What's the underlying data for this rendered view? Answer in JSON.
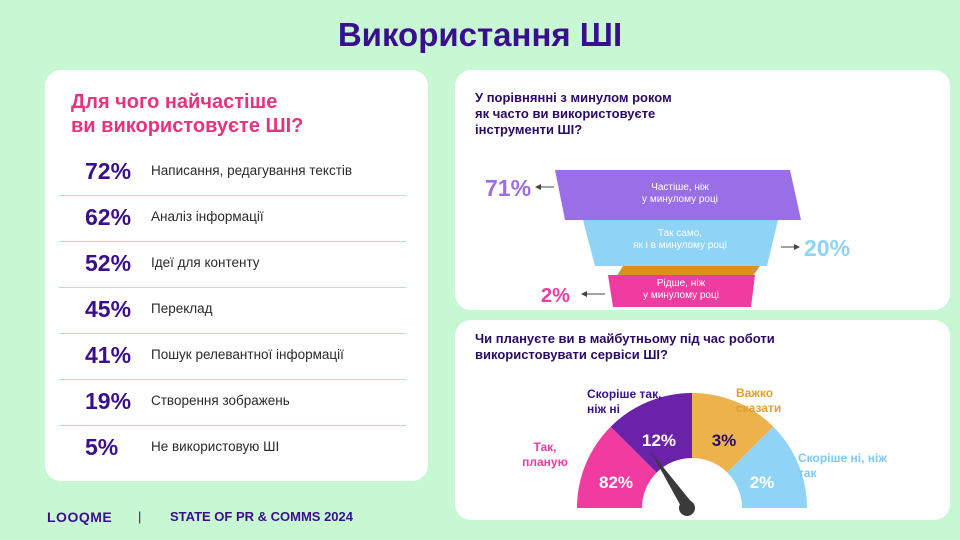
{
  "title": "Використання ШІ",
  "left_panel": {
    "question_line1": "Для чого найчастіше",
    "question_line2": "ви використовуєте ШІ?"
  },
  "funnel": {
    "question_line1": "У порівнянні з минулом роком",
    "question_line2": "як часто ви використовуєте",
    "question_line3": "інструменти ШІ?"
  },
  "gauge": {
    "question_line1": "Чи плануєте ви в майбутньому під час роботи",
    "question_line2": "використовувати сервіси ШІ?"
  },
  "footer": {
    "brand": "LOOQME",
    "divider": "|",
    "report": "STATE OF PR & COMMS 2024"
  },
  "colors": {
    "purple": "#9a6ee6",
    "blue": "#8fd3f7",
    "pink": "#f03ba0",
    "dark_purple": "#6a22a8",
    "yellow": "#ecb24c",
    "green_connector": "#6b8a2e",
    "orange_connector": "#d99220",
    "gauge_pink": "#f03ba0",
    "gauge_blue": "#8fd3f7"
  },
  "chart_data": [
    {
      "type": "table",
      "categories": [
        "Написання, редагування текстів",
        "Аналіз інформації",
        "Ідеї для контенту",
        "Переклад",
        "Пошук релевантної інформації",
        "Створення зображень",
        "Не використовую ШІ"
      ],
      "values": [
        72,
        62,
        52,
        45,
        41,
        19,
        5
      ],
      "labels": [
        "72%",
        "62%",
        "52%",
        "45%",
        "41%",
        "19%",
        "5%"
      ]
    },
    {
      "type": "bar",
      "categories": [
        {
          "line1": "Частіше, ніж",
          "line2": "у минулому році"
        },
        {
          "line1": "Так само,",
          "line2": "як і в минулому році"
        },
        {
          "line1": "Рідше, ніж",
          "line2": "у минулому році"
        }
      ],
      "values": [
        71,
        20,
        2
      ],
      "labels": [
        "71%",
        "20%",
        "2%"
      ]
    },
    {
      "type": "pie",
      "categories": [
        {
          "line1": "Так,",
          "line2": "планую"
        },
        {
          "line1": "Скоріше так,",
          "line2": "ніж ні"
        },
        {
          "line1": "Важко",
          "line2": "сказати"
        },
        {
          "line1": "Скоріше ні, ніж",
          "line2": "так"
        }
      ],
      "values": [
        82,
        12,
        3,
        2
      ],
      "labels": [
        "82%",
        "12%",
        "3%",
        "2%"
      ]
    }
  ]
}
